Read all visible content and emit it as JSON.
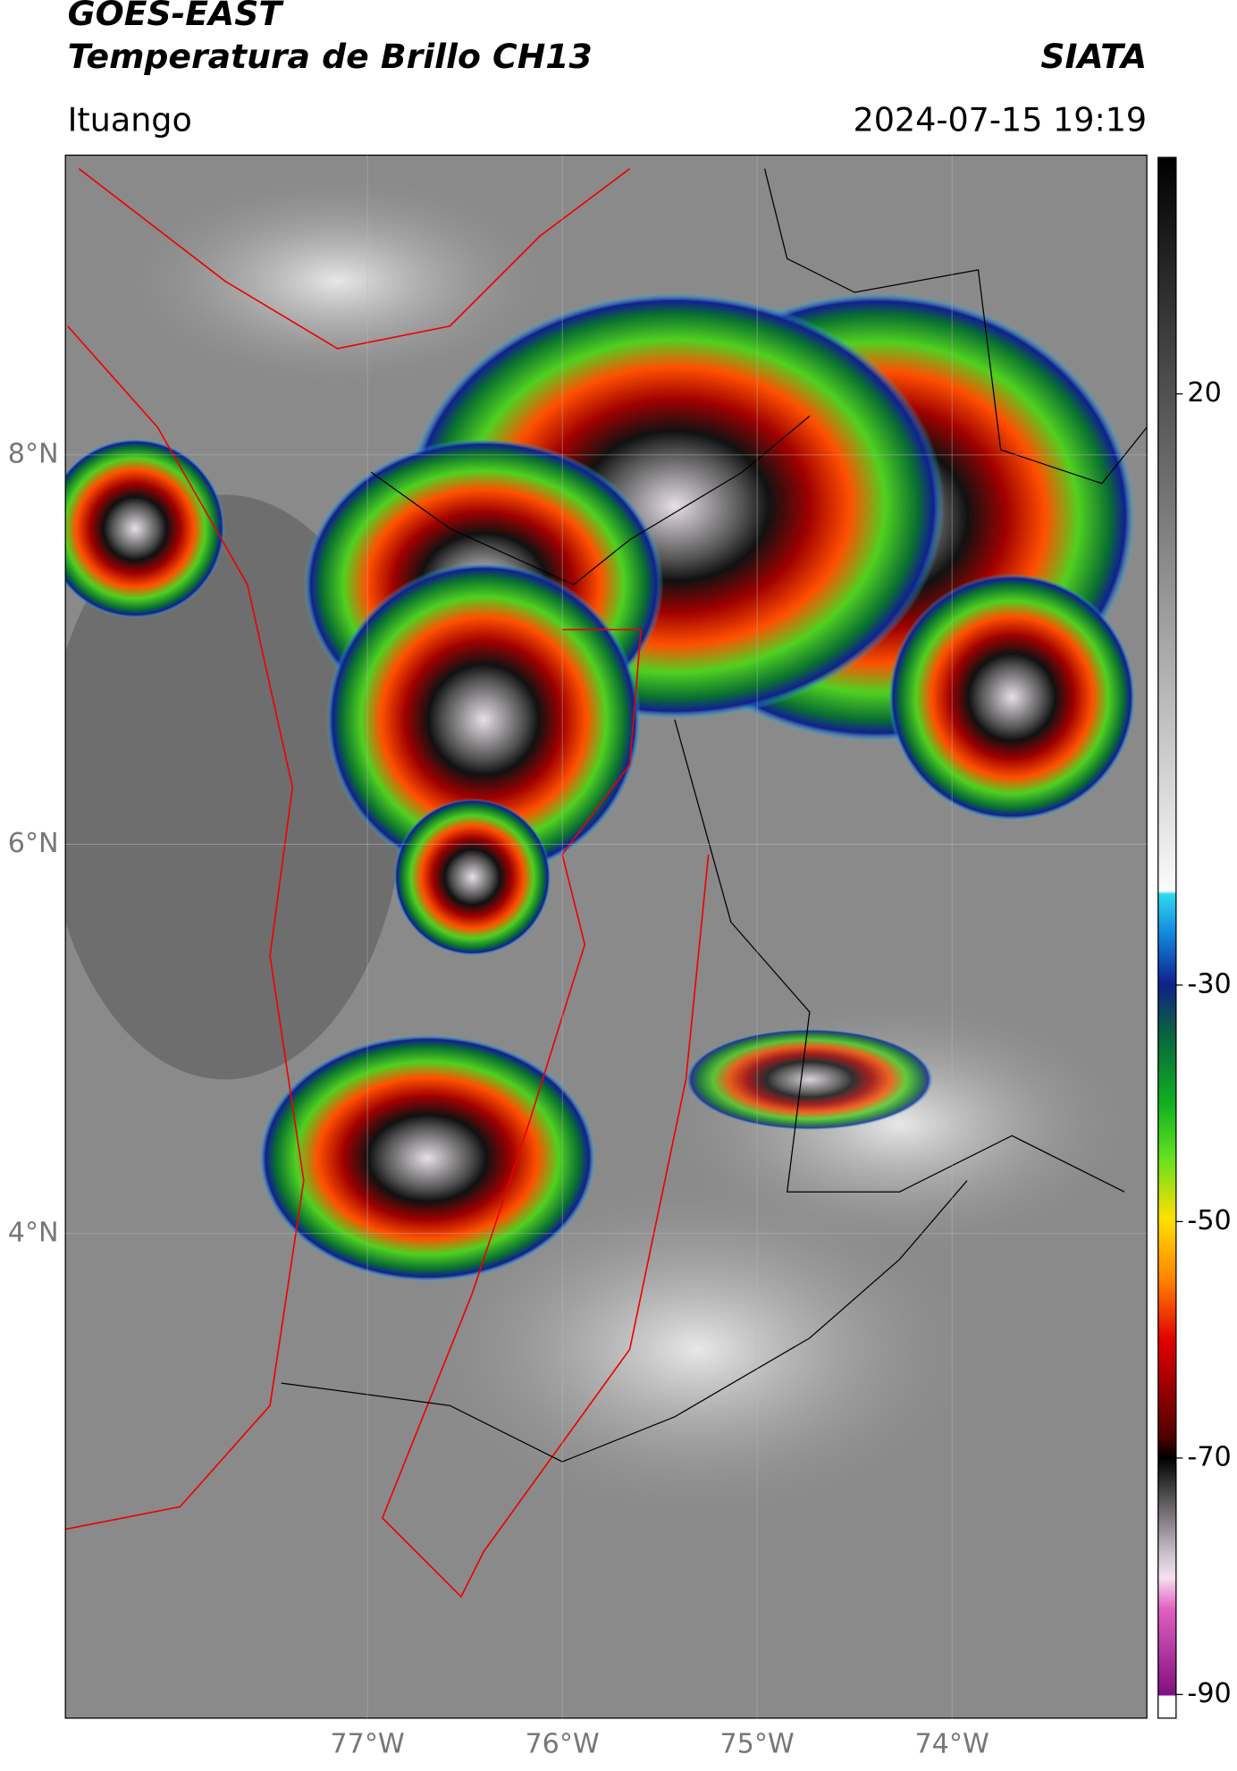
{
  "header": {
    "title_line1": "GOES-EAST",
    "title_line2": "Temperatura de Brillo CH13",
    "org": "SIATA",
    "location": "Ituango",
    "timestamp": "2024-07-15 19:19"
  },
  "map": {
    "xlim": [
      -78.55,
      -73.0
    ],
    "ylim": [
      1.51,
      9.54
    ],
    "xticks": [
      {
        "value": -77,
        "label": "77°W"
      },
      {
        "value": -76,
        "label": "76°W"
      },
      {
        "value": -75,
        "label": "75°W"
      },
      {
        "value": -74,
        "label": "74°W"
      }
    ],
    "yticks": [
      {
        "value": 8,
        "label": "8°N"
      },
      {
        "value": 6,
        "label": "6°N"
      },
      {
        "value": 4,
        "label": "4°N"
      }
    ]
  },
  "colorbar": {
    "lim": [
      -92,
      40
    ],
    "ticks": [
      20,
      -30,
      -50,
      -70,
      -90
    ]
  }
}
